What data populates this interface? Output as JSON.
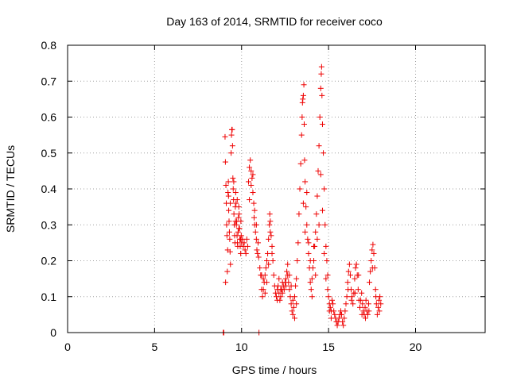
{
  "chart_data": {
    "type": "scatter",
    "title": "Day 163 of 2014, SRMTID for receiver coco",
    "xlabel": "GPS time / hours",
    "ylabel": "SRMTID / TECUs",
    "xlim": [
      0,
      24
    ],
    "ylim": [
      0,
      0.8
    ],
    "xticks": [
      0,
      5,
      10,
      15,
      20
    ],
    "yticks": [
      0,
      0.1,
      0.2,
      0.3,
      0.4,
      0.5,
      0.6,
      0.7,
      0.8
    ],
    "ytick_labels": [
      "0",
      "0.1",
      "0.2",
      "0.3",
      "0.4",
      "0.5",
      "0.6",
      "0.7",
      "0.8"
    ],
    "grid": true,
    "marker": "+",
    "color": "#ee0000",
    "series": [
      {
        "name": "SRMTID",
        "points": [
          [
            8.95,
            0.0
          ],
          [
            8.98,
            0.0
          ],
          [
            9.05,
            0.545
          ],
          [
            9.07,
            0.475
          ],
          [
            9.08,
            0.14
          ],
          [
            9.1,
            0.41
          ],
          [
            9.12,
            0.36
          ],
          [
            9.14,
            0.3
          ],
          [
            9.16,
            0.27
          ],
          [
            9.18,
            0.17
          ],
          [
            9.2,
            0.23
          ],
          [
            9.22,
            0.39
          ],
          [
            9.24,
            0.42
          ],
          [
            9.26,
            0.34
          ],
          [
            9.28,
            0.31
          ],
          [
            9.3,
            0.28
          ],
          [
            9.32,
            0.26
          ],
          [
            9.34,
            0.225
          ],
          [
            9.36,
            0.19
          ],
          [
            9.4,
            0.5
          ],
          [
            9.42,
            0.55
          ],
          [
            9.44,
            0.565
          ],
          [
            9.46,
            0.565
          ],
          [
            9.48,
            0.52
          ],
          [
            9.5,
            0.43
          ],
          [
            9.52,
            0.4
          ],
          [
            9.54,
            0.37
          ],
          [
            9.56,
            0.33
          ],
          [
            9.58,
            0.3
          ],
          [
            9.6,
            0.27
          ],
          [
            9.62,
            0.25
          ],
          [
            9.64,
            0.35
          ],
          [
            9.66,
            0.39
          ],
          [
            9.68,
            0.36
          ],
          [
            9.7,
            0.3
          ],
          [
            9.72,
            0.31
          ],
          [
            9.74,
            0.27
          ],
          [
            9.76,
            0.25
          ],
          [
            9.78,
            0.24
          ],
          [
            9.8,
            0.28
          ],
          [
            9.82,
            0.32
          ],
          [
            9.84,
            0.35
          ],
          [
            9.86,
            0.33
          ],
          [
            9.88,
            0.29
          ],
          [
            9.9,
            0.26
          ],
          [
            9.92,
            0.24
          ],
          [
            9.94,
            0.26
          ],
          [
            9.96,
            0.31
          ],
          [
            9.98,
            0.27
          ],
          [
            10.0,
            0.25
          ],
          [
            10.05,
            0.26
          ],
          [
            10.1,
            0.24
          ],
          [
            10.15,
            0.25
          ],
          [
            10.2,
            0.23
          ],
          [
            10.25,
            0.22
          ],
          [
            10.3,
            0.26
          ],
          [
            10.35,
            0.24
          ],
          [
            10.4,
            0.42
          ],
          [
            10.45,
            0.46
          ],
          [
            10.5,
            0.48
          ],
          [
            10.55,
            0.45
          ],
          [
            10.6,
            0.43
          ],
          [
            10.65,
            0.44
          ],
          [
            10.7,
            0.36
          ],
          [
            10.72,
            0.32
          ],
          [
            10.75,
            0.3
          ],
          [
            10.8,
            0.28
          ],
          [
            10.85,
            0.26
          ],
          [
            10.88,
            0.23
          ],
          [
            10.92,
            0.22
          ],
          [
            10.95,
            0.25
          ],
          [
            10.98,
            0.21
          ],
          [
            11.0,
            0.0
          ],
          [
            11.05,
            0.18
          ],
          [
            11.1,
            0.16
          ],
          [
            11.15,
            0.12
          ],
          [
            11.2,
            0.1
          ],
          [
            11.25,
            0.15
          ],
          [
            11.3,
            0.14
          ],
          [
            11.35,
            0.16
          ],
          [
            11.4,
            0.18
          ],
          [
            11.45,
            0.2
          ],
          [
            11.5,
            0.22
          ],
          [
            11.55,
            0.26
          ],
          [
            11.6,
            0.3
          ],
          [
            11.62,
            0.33
          ],
          [
            11.65,
            0.31
          ],
          [
            11.7,
            0.27
          ],
          [
            11.75,
            0.24
          ],
          [
            11.8,
            0.2
          ],
          [
            11.85,
            0.16
          ],
          [
            11.9,
            0.13
          ],
          [
            11.95,
            0.11
          ],
          [
            12.0,
            0.1
          ],
          [
            12.05,
            0.12
          ],
          [
            12.1,
            0.13
          ],
          [
            12.15,
            0.11
          ],
          [
            12.2,
            0.09
          ],
          [
            12.25,
            0.1
          ],
          [
            12.3,
            0.12
          ],
          [
            12.35,
            0.14
          ],
          [
            12.4,
            0.13
          ],
          [
            12.45,
            0.12
          ],
          [
            12.5,
            0.14
          ],
          [
            12.55,
            0.15
          ],
          [
            12.6,
            0.17
          ],
          [
            12.65,
            0.16
          ],
          [
            12.7,
            0.14
          ],
          [
            12.75,
            0.12
          ],
          [
            12.8,
            0.1
          ],
          [
            12.85,
            0.08
          ],
          [
            12.9,
            0.06
          ],
          [
            12.95,
            0.05
          ],
          [
            13.0,
            0.07
          ],
          [
            13.05,
            0.1
          ],
          [
            13.1,
            0.13
          ],
          [
            13.15,
            0.15
          ],
          [
            13.2,
            0.2
          ],
          [
            13.25,
            0.25
          ],
          [
            13.3,
            0.33
          ],
          [
            13.35,
            0.4
          ],
          [
            13.4,
            0.47
          ],
          [
            13.45,
            0.55
          ],
          [
            13.48,
            0.6
          ],
          [
            13.5,
            0.64
          ],
          [
            13.52,
            0.65
          ],
          [
            13.55,
            0.66
          ],
          [
            13.58,
            0.69
          ],
          [
            13.6,
            0.58
          ],
          [
            13.62,
            0.48
          ],
          [
            13.65,
            0.42
          ],
          [
            13.7,
            0.35
          ],
          [
            13.75,
            0.3
          ],
          [
            13.8,
            0.26
          ],
          [
            13.85,
            0.22
          ],
          [
            13.9,
            0.18
          ],
          [
            13.95,
            0.14
          ],
          [
            14.0,
            0.12
          ],
          [
            14.05,
            0.15
          ],
          [
            14.1,
            0.18
          ],
          [
            14.15,
            0.2
          ],
          [
            14.2,
            0.24
          ],
          [
            14.25,
            0.28
          ],
          [
            14.3,
            0.33
          ],
          [
            14.35,
            0.38
          ],
          [
            14.4,
            0.45
          ],
          [
            14.45,
            0.52
          ],
          [
            14.5,
            0.6
          ],
          [
            14.55,
            0.68
          ],
          [
            14.58,
            0.72
          ],
          [
            14.6,
            0.74
          ],
          [
            14.62,
            0.66
          ],
          [
            14.65,
            0.58
          ],
          [
            14.7,
            0.5
          ],
          [
            14.75,
            0.4
          ],
          [
            14.8,
            0.3
          ],
          [
            14.85,
            0.24
          ],
          [
            14.9,
            0.2
          ],
          [
            14.95,
            0.16
          ],
          [
            15.0,
            0.1
          ],
          [
            15.05,
            0.08
          ],
          [
            15.1,
            0.07
          ],
          [
            15.15,
            0.06
          ],
          [
            15.2,
            0.09
          ],
          [
            15.25,
            0.08
          ],
          [
            15.3,
            0.06
          ],
          [
            15.35,
            0.05
          ],
          [
            15.4,
            0.04
          ],
          [
            15.45,
            0.03
          ],
          [
            15.5,
            0.02
          ],
          [
            15.55,
            0.03
          ],
          [
            15.6,
            0.04
          ],
          [
            15.65,
            0.05
          ],
          [
            15.7,
            0.06
          ],
          [
            15.75,
            0.05
          ],
          [
            15.8,
            0.03
          ],
          [
            15.85,
            0.02
          ],
          [
            15.9,
            0.04
          ],
          [
            15.95,
            0.06
          ],
          [
            16.0,
            0.08
          ],
          [
            16.05,
            0.1
          ],
          [
            16.1,
            0.14
          ],
          [
            16.15,
            0.17
          ],
          [
            16.2,
            0.19
          ],
          [
            16.25,
            0.16
          ],
          [
            16.3,
            0.12
          ],
          [
            16.35,
            0.1
          ],
          [
            16.4,
            0.08
          ],
          [
            16.45,
            0.11
          ],
          [
            16.5,
            0.15
          ],
          [
            16.55,
            0.18
          ],
          [
            16.6,
            0.19
          ],
          [
            16.65,
            0.16
          ],
          [
            16.7,
            0.12
          ],
          [
            16.75,
            0.09
          ],
          [
            16.8,
            0.07
          ],
          [
            16.85,
            0.09
          ],
          [
            16.9,
            0.11
          ],
          [
            16.95,
            0.08
          ],
          [
            17.0,
            0.06
          ],
          [
            17.05,
            0.05
          ],
          [
            17.1,
            0.07
          ],
          [
            17.15,
            0.09
          ],
          [
            17.2,
            0.06
          ],
          [
            17.25,
            0.05
          ],
          [
            17.3,
            0.08
          ],
          [
            17.35,
            0.14
          ],
          [
            17.4,
            0.17
          ],
          [
            17.45,
            0.2
          ],
          [
            17.5,
            0.23
          ],
          [
            17.55,
            0.245
          ],
          [
            17.6,
            0.22
          ],
          [
            17.65,
            0.18
          ],
          [
            17.7,
            0.12
          ],
          [
            17.75,
            0.08
          ],
          [
            17.8,
            0.05
          ],
          [
            17.85,
            0.07
          ],
          [
            17.9,
            0.09
          ],
          [
            17.95,
            0.1
          ],
          [
            18.0,
            0.08
          ],
          [
            11.15,
            0.16
          ],
          [
            11.25,
            0.12
          ],
          [
            11.35,
            0.11
          ],
          [
            11.45,
            0.14
          ],
          [
            11.55,
            0.19
          ],
          [
            11.65,
            0.28
          ],
          [
            11.75,
            0.22
          ],
          [
            12.05,
            0.09
          ],
          [
            12.15,
            0.15
          ],
          [
            12.25,
            0.12
          ],
          [
            12.35,
            0.11
          ],
          [
            12.55,
            0.13
          ],
          [
            12.65,
            0.19
          ],
          [
            12.75,
            0.16
          ],
          [
            12.85,
            0.13
          ],
          [
            12.95,
            0.09
          ],
          [
            13.05,
            0.04
          ],
          [
            13.15,
            0.08
          ],
          [
            13.55,
            0.36
          ],
          [
            13.65,
            0.28
          ],
          [
            13.75,
            0.39
          ],
          [
            13.85,
            0.25
          ],
          [
            13.95,
            0.2
          ],
          [
            14.05,
            0.1
          ],
          [
            14.15,
            0.24
          ],
          [
            14.25,
            0.16
          ],
          [
            14.35,
            0.26
          ],
          [
            14.45,
            0.3
          ],
          [
            14.55,
            0.44
          ],
          [
            14.65,
            0.34
          ],
          [
            14.75,
            0.22
          ],
          [
            14.85,
            0.15
          ],
          [
            14.95,
            0.12
          ],
          [
            15.05,
            0.06
          ],
          [
            15.15,
            0.04
          ],
          [
            16.12,
            0.12
          ],
          [
            16.32,
            0.09
          ],
          [
            16.52,
            0.11
          ],
          [
            16.72,
            0.16
          ],
          [
            16.92,
            0.05
          ],
          [
            17.12,
            0.04
          ],
          [
            17.32,
            0.06
          ],
          [
            17.52,
            0.18
          ],
          [
            17.72,
            0.1
          ],
          [
            17.92,
            0.06
          ],
          [
            9.25,
            0.38
          ],
          [
            9.35,
            0.36
          ],
          [
            9.55,
            0.42
          ],
          [
            9.65,
            0.31
          ],
          [
            9.75,
            0.37
          ],
          [
            9.85,
            0.29
          ],
          [
            9.95,
            0.22
          ],
          [
            10.45,
            0.37
          ],
          [
            10.55,
            0.41
          ],
          [
            10.65,
            0.39
          ],
          [
            10.75,
            0.34
          ],
          [
            10.85,
            0.3
          ]
        ]
      }
    ]
  }
}
